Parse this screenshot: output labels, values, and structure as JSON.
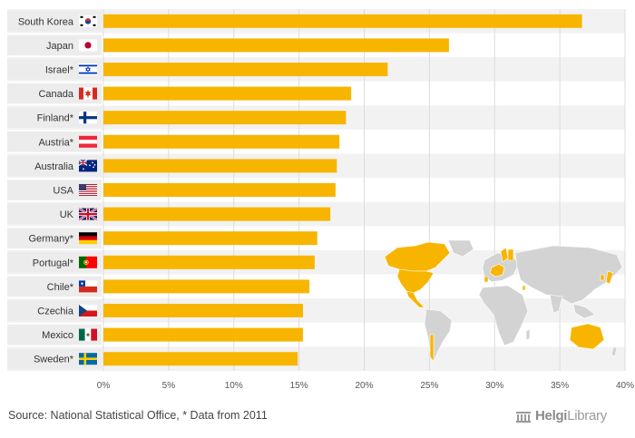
{
  "chart_data": {
    "type": "bar",
    "orientation": "horizontal",
    "categories": [
      "South Korea",
      "Japan",
      "Israel*",
      "Canada",
      "Finland*",
      "Austria*",
      "Australia",
      "USA",
      "UK",
      "Germany*",
      "Portugal*",
      "Chile*",
      "Czechia",
      "Mexico",
      "Sweden*"
    ],
    "values": [
      36.7,
      26.5,
      21.8,
      19.0,
      18.6,
      18.1,
      17.9,
      17.8,
      17.4,
      16.4,
      16.2,
      15.8,
      15.3,
      15.3,
      14.9
    ],
    "flags": [
      "south-korea-flag-icon",
      "japan-flag-icon",
      "israel-flag-icon",
      "canada-flag-icon",
      "finland-flag-icon",
      "austria-flag-icon",
      "australia-flag-icon",
      "usa-flag-icon",
      "uk-flag-icon",
      "germany-flag-icon",
      "portugal-flag-icon",
      "chile-flag-icon",
      "czechia-flag-icon",
      "mexico-flag-icon",
      "sweden-flag-icon"
    ],
    "xlim": [
      0,
      40
    ],
    "xticks": [
      0,
      5,
      10,
      15,
      20,
      25,
      30,
      35,
      40
    ],
    "xtick_labels": [
      "0%",
      "5%",
      "10%",
      "15%",
      "20%",
      "25%",
      "30%",
      "35%",
      "40%"
    ],
    "bar_color": "#f7b500",
    "title": "",
    "xlabel": "",
    "ylabel": ""
  },
  "footer": {
    "source": "Source: National Statistical Office, * Data from 2011",
    "logo_part1": "Helgi",
    "logo_part2": "Library"
  },
  "colors": {
    "accent": "#f7b500",
    "map_land": "#d3d3d3"
  }
}
